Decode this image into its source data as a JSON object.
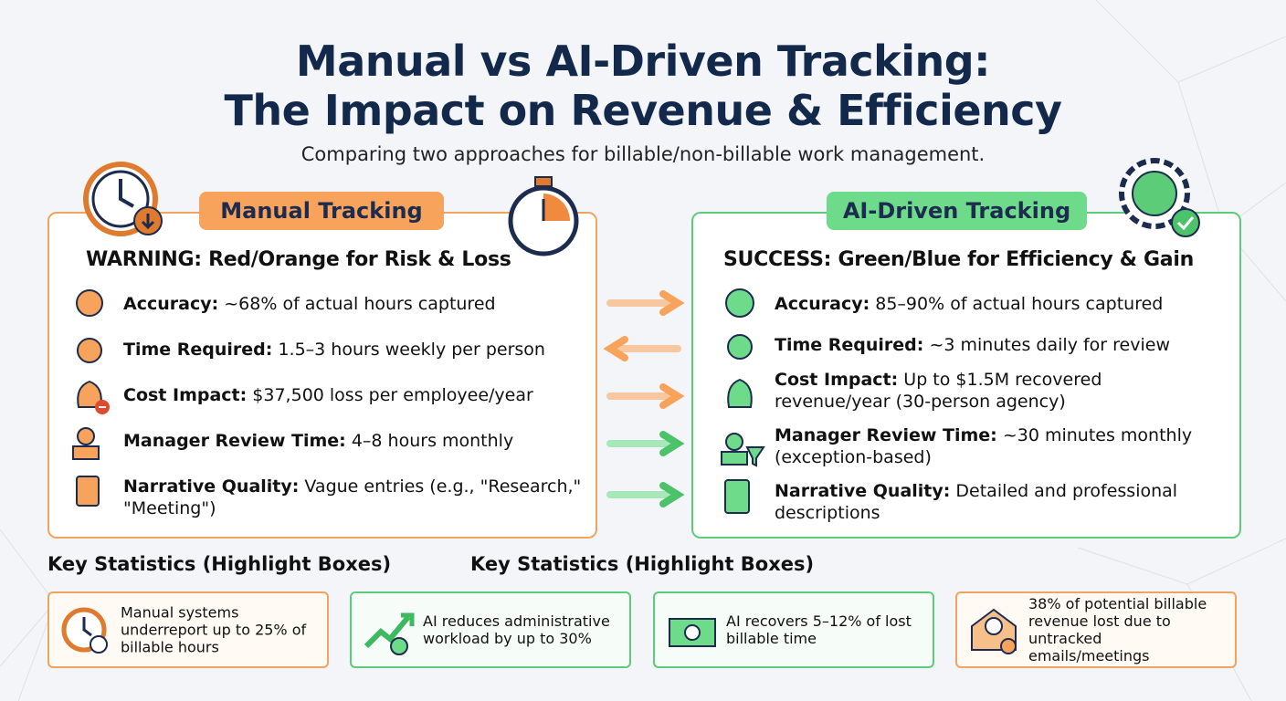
{
  "header": {
    "title": [
      "Manual vs AI-Driven Tracking:",
      "The Impact on Revenue & Efficiency"
    ],
    "subtitle": "Comparing two approaches for billable/non-billable work management."
  },
  "manual": {
    "label": "Manual Tracking",
    "heading": "WARNING: Red/Orange for Risk & Loss",
    "items": [
      {
        "label": "Accuracy:",
        "text": "~68% of actual hours captured"
      },
      {
        "label": "Time Required:",
        "text": "1.5–3 hours weekly per person"
      },
      {
        "label": "Cost Impact:",
        "text": "$37,500 loss per employee/year"
      },
      {
        "label": "Manager Review Time:",
        "text": "4–8 hours monthly"
      },
      {
        "label": "Narrative Quality:",
        "text": "Vague entries (e.g., \"Research,\" \"Meeting\")"
      }
    ]
  },
  "ai": {
    "label": "AI-Driven Tracking",
    "heading": "SUCCESS: Green/Blue for Efficiency & Gain",
    "items": [
      {
        "label": "Accuracy:",
        "text": "85–90% of actual hours captured"
      },
      {
        "label": "Time Required:",
        "text": "~3 minutes daily for review"
      },
      {
        "label": "Cost Impact:",
        "text": "Up to $1.5M recovered revenue/year (30-person agency)"
      },
      {
        "label": "Manager Review Time:",
        "text": "~30 minutes monthly (exception-based)"
      },
      {
        "label": "Narrative Quality:",
        "text": "Detailed and professional descriptions"
      }
    ]
  },
  "stats_headings": [
    "Key Statistics (Highlight Boxes)",
    "Key Statistics (Highlight Boxes)"
  ],
  "stats": [
    "Manual systems underreport up to 25% of billable hours",
    "AI reduces administrative workload by up to 30%",
    "AI recovers 5–12% of lost billable time",
    "38% of potential billable revenue lost due to untracked emails/meetings"
  ]
}
